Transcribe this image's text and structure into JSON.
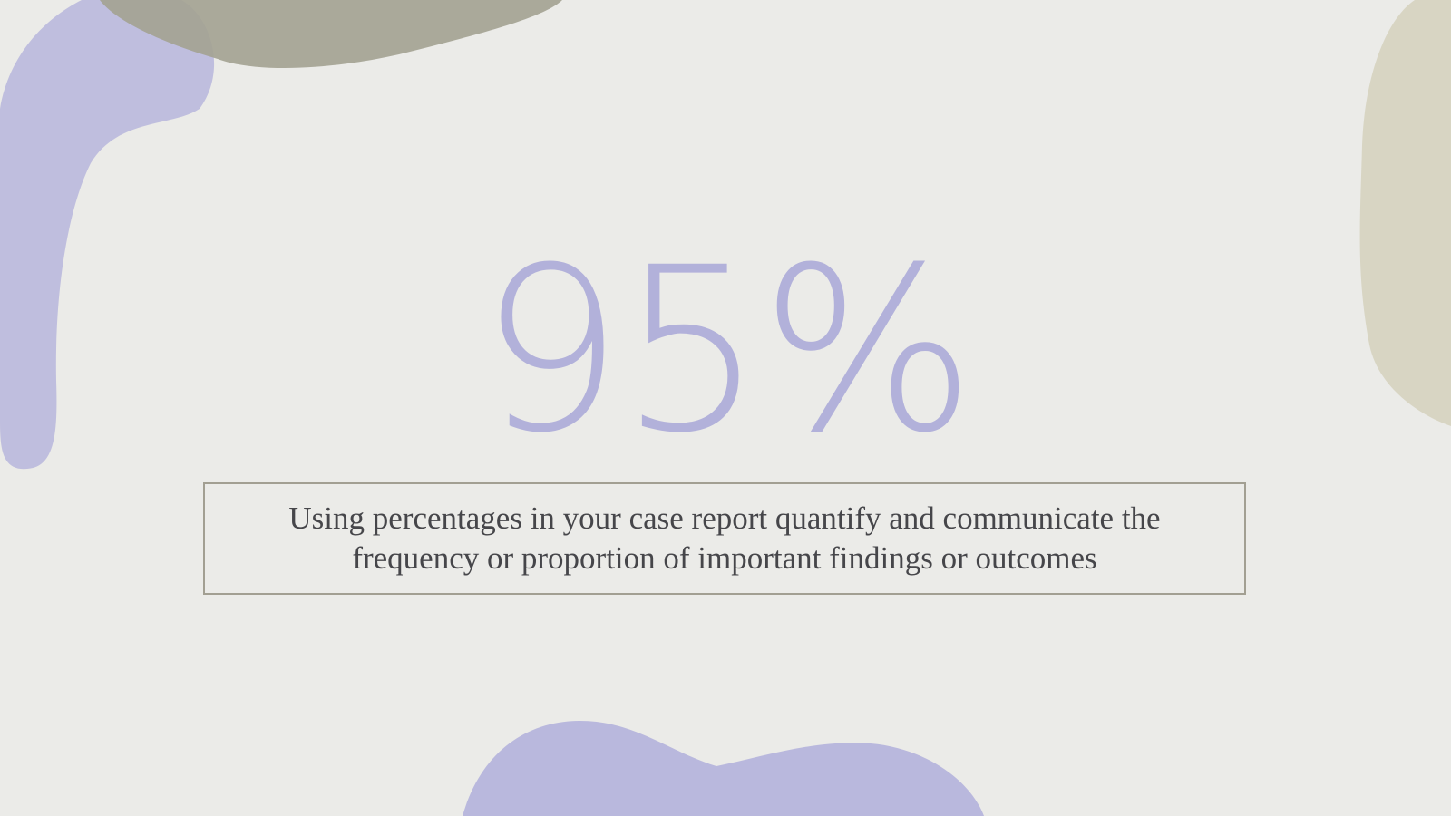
{
  "slide": {
    "stat_value": "95%",
    "description": "Using percentages in your case report quantify and communicate the frequency or proportion of important findings or outcomes"
  },
  "colors": {
    "background": "#ebebe8",
    "stat": "#b2b1da",
    "text": "#46464a",
    "border": "#a29f92",
    "lavender_blob": "#b4b3dc",
    "olive_blob": "#a3a291",
    "sand_blob": "#d8d5c2"
  }
}
